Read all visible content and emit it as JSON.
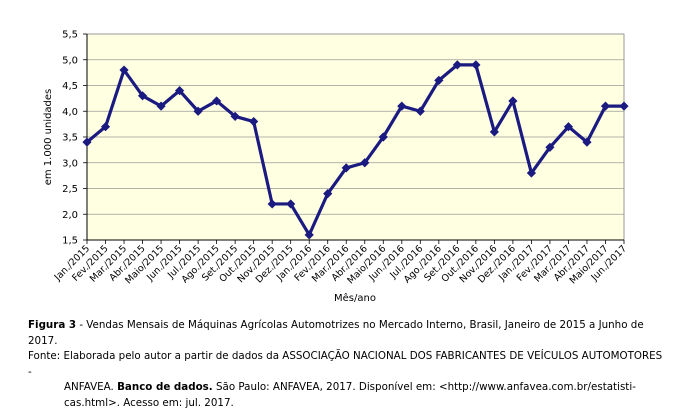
{
  "chart_data": {
    "type": "line",
    "ylabel": "em 1.000 unidades",
    "xlabel": "Mês/ano",
    "ylim": [
      1.5,
      5.5
    ],
    "yticks": [
      "1,5",
      "2,0",
      "2,5",
      "3,0",
      "3,5",
      "4,0",
      "4,5",
      "5,0",
      "5,5"
    ],
    "grid": true,
    "legend": "none",
    "line_color": "#1a1a80",
    "background_color": "#ffffe1",
    "categories": [
      "Jan./2015",
      "Fev./2015",
      "Mar./2015",
      "Abr./2015",
      "Maio/2015",
      "Jun./2015",
      "Jul./2015",
      "Ago./2015",
      "Set./2015",
      "Out./2015",
      "Nov./2015",
      "Dez./2015",
      "Jan./2016",
      "Fev./2016",
      "Mar./2016",
      "Abr./2016",
      "Maio/2016",
      "Jun./2016",
      "Jul./2016",
      "Ago./2016",
      "Set./2016",
      "Out./2016",
      "Nov./2016",
      "Dez./2016",
      "Jan./2017",
      "Fev./2017",
      "Mar./2017",
      "Abr./2017",
      "Maio/2017",
      "Jun./2017"
    ],
    "values": [
      3.4,
      3.7,
      4.8,
      4.3,
      4.1,
      4.4,
      4.0,
      4.2,
      3.9,
      3.8,
      2.2,
      2.2,
      1.6,
      2.4,
      2.9,
      3.0,
      3.5,
      4.1,
      4.0,
      4.6,
      4.9,
      4.9,
      3.6,
      4.2,
      2.8,
      3.3,
      3.7,
      3.4,
      4.1,
      4.1
    ]
  },
  "caption": {
    "figure_label": "Figura 3",
    "figure_text": " - Vendas Mensais de Máquinas Agrícolas Automotrizes no Mercado Interno, Brasil, Janeiro de 2015 a Junho de 2017.",
    "source_line1": "Fonte: Elaborada pelo autor a partir de dados da ASSOCIAÇÃO NACIONAL DOS FABRICANTES DE VEÍCULOS AUTOMOTORES -",
    "source_line2_a": "ANFAVEA. ",
    "source_line2_bold": "Banco de dados.",
    "source_line2_b": "  São Paulo: ANFAVEA, 2017. Disponível em: <http://www.anfavea.com.br/estatisti-",
    "source_line3": "cas.html>. Acesso em: jul. 2017."
  }
}
